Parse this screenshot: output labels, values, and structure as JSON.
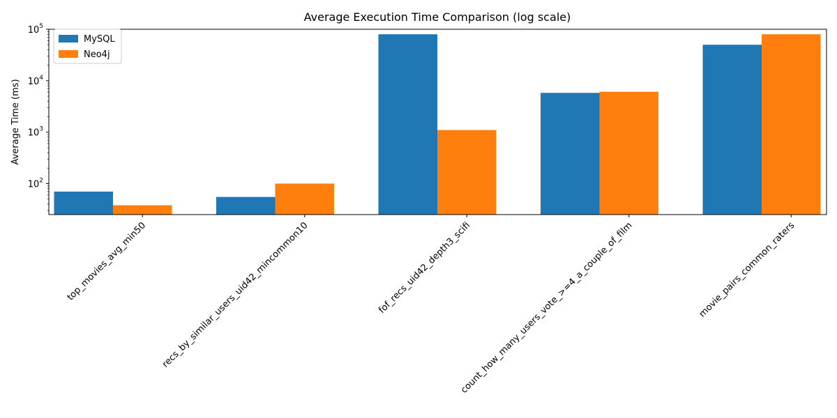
{
  "chart_data": {
    "type": "bar",
    "title": "Average Execution Time Comparison (log scale)",
    "xlabel": "",
    "ylabel": "Average Time (ms)",
    "yscale": "log",
    "ylim": [
      25,
      100000
    ],
    "yticks": [
      {
        "value": 100,
        "base": "10",
        "exp": "2"
      },
      {
        "value": 1000,
        "base": "10",
        "exp": "3"
      },
      {
        "value": 10000,
        "base": "10",
        "exp": "4"
      },
      {
        "value": 100000,
        "base": "10",
        "exp": "5"
      }
    ],
    "categories": [
      "top_movies_avg_min50",
      "recs_by_similar_users_uid42_mincommon10",
      "fof_recs_uid42_depth3_scifi",
      "count_how_many_users_vote_>=4_a_couple_of_film",
      "movie_pairs_common_raters"
    ],
    "series": [
      {
        "name": "MySQL",
        "color": "#1f77b4",
        "values": [
          70,
          55,
          80000,
          5800,
          50000
        ]
      },
      {
        "name": "Neo4j",
        "color": "#ff7f0e",
        "values": [
          38,
          100,
          1100,
          6100,
          80000
        ]
      }
    ],
    "grid": false,
    "legend": "top-left"
  }
}
